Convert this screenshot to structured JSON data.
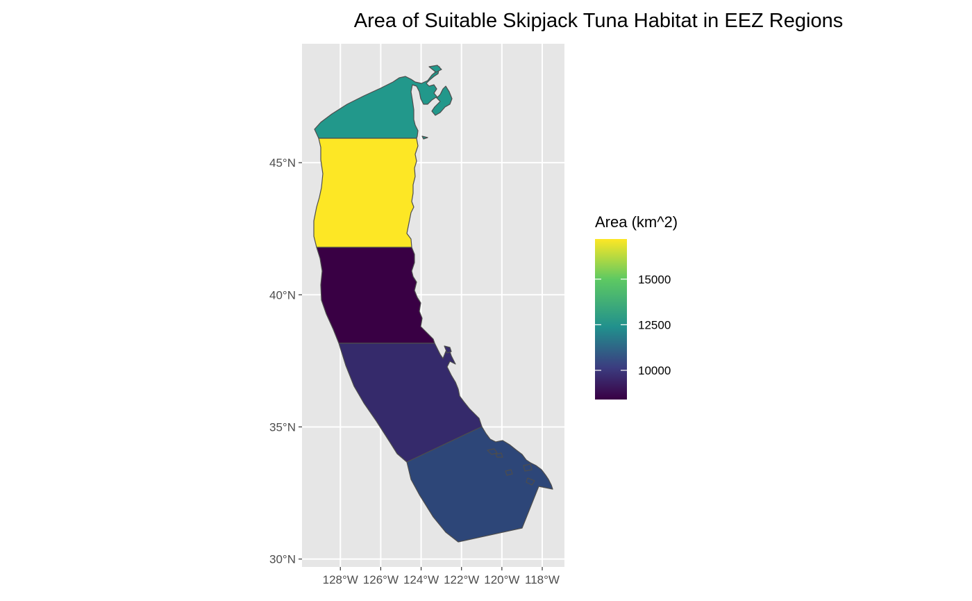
{
  "title": "Area of Suitable Skipjack Tuna Habitat in EEZ Regions",
  "legend": {
    "title": "Area (km^2)",
    "min": 8400,
    "max": 17200,
    "breaks": [
      {
        "value": 10000,
        "label": "10000"
      },
      {
        "value": 12500,
        "label": "12500"
      },
      {
        "value": 15000,
        "label": "15000"
      }
    ]
  },
  "axes": {
    "x": {
      "range": [
        -129.9,
        -116.9
      ],
      "ticks": [
        {
          "value": -128,
          "label": "128°W"
        },
        {
          "value": -126,
          "label": "126°W"
        },
        {
          "value": -124,
          "label": "124°W"
        },
        {
          "value": -122,
          "label": "122°W"
        },
        {
          "value": -120,
          "label": "120°W"
        },
        {
          "value": -118,
          "label": "118°W"
        }
      ]
    },
    "y": {
      "range": [
        29.7,
        49.5
      ],
      "ticks": [
        {
          "value": 30,
          "label": "30°N"
        },
        {
          "value": 35,
          "label": "35°N"
        },
        {
          "value": 40,
          "label": "40°N"
        },
        {
          "value": 45,
          "label": "45°N"
        }
      ]
    }
  },
  "regions": [
    {
      "id": "region-washington",
      "area_km2": 14000,
      "color": "#22988b"
    },
    {
      "id": "region-oregon",
      "area_km2": 17200,
      "color": "#fde725"
    },
    {
      "id": "region-northern-california",
      "area_km2": 8400,
      "color": "#390044"
    },
    {
      "id": "region-central-california",
      "area_km2": 9200,
      "color": "#352a6b"
    },
    {
      "id": "region-southern-california",
      "area_km2": 10800,
      "color": "#2d4678"
    }
  ],
  "colors": {
    "panel": "#e6e6e6",
    "grid": "#ffffff",
    "gradient": [
      "#440154",
      "#3b528b",
      "#21918c",
      "#5ec962",
      "#fde725"
    ]
  }
}
